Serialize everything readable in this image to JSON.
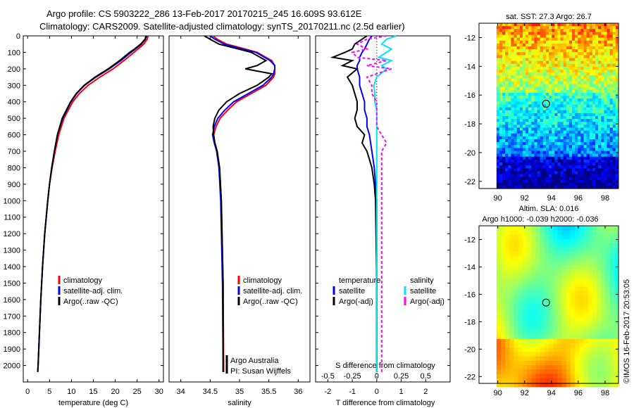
{
  "header": {
    "line1": "Argo profile: CS 5903222_286 13-Feb-2017 20170215_245 16.609S 93.612E",
    "line2": "Climatology: CARS2009. Satellite-adjusted climatology: synTS_20170211.nc (2.5d earlier)"
  },
  "colors": {
    "climatology": "#ff0000",
    "satellite": "#0000ff",
    "argo": "#000000",
    "salinity_satellite": "#00e5ff",
    "salinity_argo": "#ff00ff"
  },
  "chart_data": [
    {
      "type": "line",
      "panel": "temperature",
      "xlabel": "temperature (deg C)",
      "ylabel": "",
      "xlim": [
        -1,
        31
      ],
      "ylim": [
        2100,
        0
      ],
      "xticks": [
        0,
        5,
        10,
        15,
        20,
        25,
        30
      ],
      "yticks": [
        0,
        100,
        200,
        300,
        400,
        500,
        600,
        700,
        800,
        900,
        1000,
        1100,
        1200,
        1300,
        1400,
        1500,
        1600,
        1700,
        1800,
        1900,
        2000
      ],
      "depth": [
        0,
        20,
        50,
        80,
        100,
        150,
        200,
        250,
        300,
        350,
        400,
        500,
        600,
        700,
        800,
        900,
        1000,
        1200,
        1400,
        1600,
        1800,
        2000,
        2040
      ],
      "legend": [
        "climatology",
        "satellite-adj. clim.",
        "Argo(..raw -QC)"
      ],
      "series": [
        {
          "name": "climatology",
          "values": [
            27.5,
            27.3,
            26.5,
            25.2,
            24.3,
            22.0,
            19.5,
            16.5,
            13.8,
            11.8,
            10.3,
            8.3,
            7.1,
            6.3,
            5.6,
            5.0,
            4.6,
            3.9,
            3.4,
            3.0,
            2.7,
            2.4,
            2.3
          ]
        },
        {
          "name": "satellite-adj. clim.",
          "values": [
            27.2,
            26.9,
            26.0,
            24.6,
            23.6,
            21.3,
            18.6,
            15.6,
            13.0,
            11.2,
            9.9,
            8.0,
            6.8,
            6.1,
            5.5,
            5.0,
            4.6,
            3.9,
            3.4,
            3.0,
            2.7,
            2.4,
            2.3
          ]
        },
        {
          "name": "Argo(..raw -QC)",
          "values": [
            27.0,
            26.8,
            25.8,
            24.4,
            23.3,
            21.0,
            18.4,
            15.4,
            12.9,
            11.1,
            9.8,
            7.9,
            6.8,
            6.1,
            5.5,
            5.0,
            4.6,
            3.9,
            3.4,
            3.0,
            2.7,
            2.4,
            2.3
          ]
        }
      ]
    },
    {
      "type": "line",
      "panel": "salinity",
      "xlabel": "salinity",
      "xlim": [
        33.8,
        36.2
      ],
      "ylim": [
        2100,
        0
      ],
      "xticks": [
        34,
        34.5,
        35,
        35.5,
        36
      ],
      "depth": [
        0,
        20,
        50,
        80,
        100,
        150,
        180,
        200,
        230,
        250,
        300,
        350,
        400,
        450,
        500,
        550,
        600,
        650,
        700,
        800,
        1000,
        1500,
        2000,
        2040
      ],
      "legend": [
        "climatology",
        "satellite-adj. clim.",
        "Argo(..raw -QC)"
      ],
      "annotations": [
        "Argo Australia",
        "PI: Susan Wijffels"
      ],
      "series": [
        {
          "name": "climatology",
          "values": [
            34.55,
            34.62,
            34.78,
            35.1,
            35.3,
            35.55,
            35.6,
            35.6,
            35.6,
            35.58,
            35.45,
            35.2,
            34.95,
            34.8,
            34.67,
            34.6,
            34.56,
            34.58,
            34.62,
            34.66,
            34.69,
            34.72,
            34.73,
            34.73
          ]
        },
        {
          "name": "satellite-adj. clim.",
          "values": [
            34.5,
            34.58,
            34.74,
            35.05,
            35.28,
            35.52,
            35.6,
            35.6,
            35.58,
            35.55,
            35.4,
            35.15,
            34.9,
            34.75,
            34.63,
            34.57,
            34.54,
            34.57,
            34.61,
            34.65,
            34.68,
            34.71,
            34.72,
            34.72
          ]
        },
        {
          "name": "Argo(..raw -QC)",
          "values": [
            34.4,
            34.5,
            34.65,
            34.98,
            35.2,
            35.45,
            35.3,
            35.1,
            35.55,
            35.5,
            35.3,
            35.0,
            34.78,
            34.65,
            34.58,
            34.55,
            34.56,
            34.58,
            34.62,
            34.66,
            34.69,
            34.72,
            34.72,
            34.72
          ]
        }
      ]
    },
    {
      "type": "line",
      "panel": "differences",
      "xlabel": "T difference from climatology",
      "xlabel_top": "S difference from climatology",
      "xlim_T": [
        -2.5,
        3
      ],
      "xticks_T": [
        -2,
        -1,
        0,
        1,
        2
      ],
      "xlim_S": [
        -0.625,
        0.75
      ],
      "xticks_S": [
        -0.5,
        -0.25,
        0,
        0.25,
        0.5
      ],
      "ylim": [
        2100,
        0
      ],
      "legend_groups": [
        "temperature",
        "salinity"
      ],
      "legend": [
        "satellite",
        "Argo(-adj)",
        "satellite",
        "Argo(-adj)"
      ],
      "depth": [
        0,
        20,
        50,
        80,
        100,
        130,
        150,
        180,
        200,
        250,
        300,
        350,
        400,
        450,
        500,
        550,
        600,
        650,
        700,
        750,
        800,
        900,
        1000,
        1500,
        2000,
        2040
      ],
      "series": [
        {
          "name": "satellite",
          "group": "temperature",
          "values": [
            -0.2,
            -0.3,
            -0.4,
            -0.5,
            -0.6,
            -0.7,
            -0.7,
            -0.8,
            -0.8,
            -0.7,
            -0.7,
            -0.6,
            -0.5,
            -0.5,
            -0.4,
            -0.4,
            -0.3,
            -0.25,
            -0.2,
            -0.15,
            -0.1,
            -0.05,
            0,
            0,
            0,
            0
          ]
        },
        {
          "name": "Argo(-adj)",
          "group": "temperature",
          "values": [
            -0.4,
            -0.6,
            -0.9,
            -1.0,
            -1.3,
            -1.8,
            -1.0,
            -1.4,
            -0.8,
            -1.2,
            -1.0,
            -0.9,
            -0.8,
            -0.8,
            -0.9,
            -0.8,
            -0.5,
            -0.6,
            -0.4,
            -0.3,
            -0.2,
            -0.1,
            -0.05,
            0,
            0,
            0
          ]
        },
        {
          "name": "satellite",
          "group": "salinity",
          "values": [
            0.2,
            0.1,
            0.05,
            0.15,
            0.1,
            0.02,
            0.15,
            0.05,
            0.1,
            0,
            -0.03,
            -0.02,
            -0.02,
            0,
            0,
            0,
            0,
            0,
            0,
            0,
            0,
            0,
            0,
            0,
            0,
            0
          ]
        },
        {
          "name": "Argo(-adj)",
          "group": "salinity",
          "values": [
            0.1,
            -0.1,
            -0.2,
            -0.1,
            -0.25,
            -0.2,
            0.1,
            -0.1,
            0.15,
            -0.1,
            -0.05,
            -0.05,
            0,
            0,
            0,
            0,
            0.05,
            0.1,
            0.05,
            0.05,
            0.05,
            0.05,
            0.05,
            0.05,
            0.05,
            0.05
          ]
        }
      ]
    },
    {
      "type": "heatmap",
      "panel": "sst_map",
      "title": "sat. SST: 27.3 Argo: 26.7",
      "xlim": [
        88.6,
        99
      ],
      "ylim": [
        -22.5,
        -11
      ],
      "xticks": [
        90,
        92,
        94,
        96,
        98
      ],
      "yticks": [
        -12,
        -14,
        -16,
        -18,
        -20,
        -22
      ],
      "argo_position": [
        93.6,
        -16.6
      ]
    },
    {
      "type": "heatmap",
      "panel": "sla_map",
      "title_line1": "Altim. SLA: 0.016",
      "title_line2": "Argo h1000: -0.039 h2000: -0.036",
      "xlim": [
        88.6,
        99
      ],
      "ylim": [
        -22.5,
        -11
      ],
      "xticks": [
        90,
        92,
        94,
        96,
        98
      ],
      "yticks": [
        -12,
        -14,
        -16,
        -18,
        -20,
        -22
      ],
      "argo_position": [
        93.6,
        -16.6
      ]
    }
  ],
  "footer": {
    "stamp": "©IMOS 16-Feb-2017 20:53:05"
  }
}
